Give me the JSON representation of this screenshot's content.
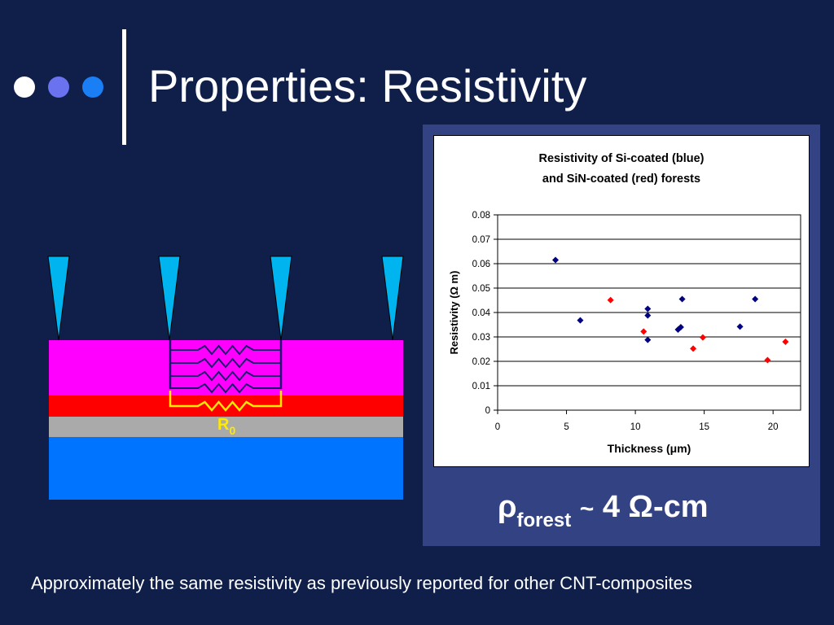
{
  "slide": {
    "title": "Properties: Resistivity",
    "caption": "Approximately the same resistivity as previously reported for other CNT-composites",
    "nav_dots": [
      "#ffffff",
      "#6a72f0",
      "#1a7ef5"
    ]
  },
  "diagram": {
    "resistor_label": "R",
    "resistor_subscript": "0",
    "colors": {
      "probe": "#00b4f0",
      "top_layer": "#ff00ff",
      "red_layer": "#ff0000",
      "gray_layer": "#aaaaaa",
      "substrate": "#0073ff",
      "resistor": "#ffea00",
      "network": "#1a1a6e"
    }
  },
  "result": {
    "symbol": "ρ",
    "subscript": "forest",
    "relation": "~",
    "value": "4 Ω-cm"
  },
  "chart_data": {
    "type": "scatter",
    "title_lines": [
      "Resistivity of Si-coated (blue)",
      "and SiN-coated (red) forests"
    ],
    "xlabel": "Thickness (μm)",
    "ylabel": "Resistivity (Ω m)",
    "xlim": [
      0,
      22
    ],
    "ylim": [
      0,
      0.08
    ],
    "xticks": [
      0,
      5,
      10,
      15,
      20
    ],
    "yticks": [
      0,
      0.01,
      0.02,
      0.03,
      0.04,
      0.05,
      0.06,
      0.07,
      0.08
    ],
    "ytick_labels": [
      "0",
      "0.01",
      "0.02",
      "0.03",
      "0.04",
      "0.05",
      "0.06",
      "0.07",
      "0.08"
    ],
    "grid": true,
    "series": [
      {
        "color": "#000080",
        "points": [
          [
            4.2,
            0.0615
          ],
          [
            6.0,
            0.0368
          ],
          [
            10.9,
            0.0415
          ],
          [
            10.9,
            0.0388
          ],
          [
            10.9,
            0.0288
          ],
          [
            13.1,
            0.033
          ],
          [
            13.3,
            0.034
          ],
          [
            13.4,
            0.0455
          ],
          [
            17.6,
            0.0342
          ],
          [
            18.7,
            0.0455
          ]
        ]
      },
      {
        "color": "#ff0000",
        "points": [
          [
            8.2,
            0.0451
          ],
          [
            10.6,
            0.0322
          ],
          [
            14.2,
            0.0252
          ],
          [
            14.9,
            0.0298
          ],
          [
            19.6,
            0.0205
          ],
          [
            20.9,
            0.028
          ]
        ]
      }
    ]
  }
}
